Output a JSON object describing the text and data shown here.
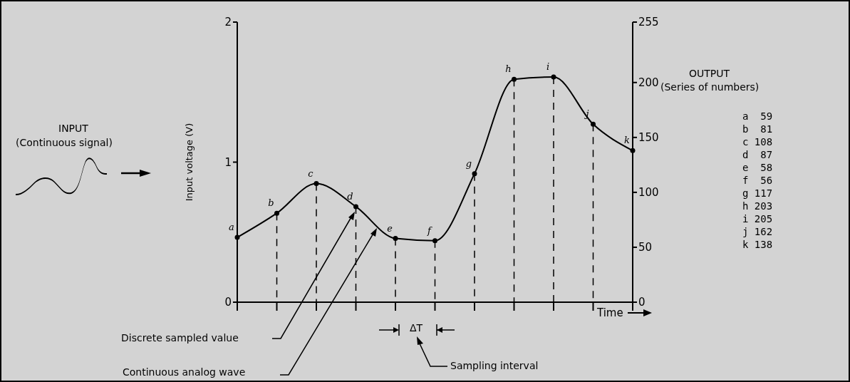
{
  "chart_data": {
    "type": "line",
    "xlabel": "Time",
    "ylabel": "Input voltage (V)",
    "categories": [
      "a",
      "b",
      "c",
      "d",
      "e",
      "f",
      "g",
      "h",
      "i",
      "j",
      "k"
    ],
    "series": [
      {
        "color": "#000000",
        "axis": "y2",
        "marker": "none",
        "values": [
          59,
          81,
          108,
          87,
          58,
          56,
          117,
          203,
          205,
          162,
          138
        ]
      },
      {
        "type": "lollipop",
        "color": "#000000",
        "axis": "y2",
        "values": [
          59,
          81,
          108,
          87,
          58,
          56,
          117,
          203,
          205,
          162,
          138
        ]
      }
    ],
    "ylim": [
      0,
      2
    ],
    "yticks": [
      0,
      1,
      2
    ],
    "y2lim": [
      0,
      255
    ],
    "y2ticks": [
      0,
      50,
      100,
      150,
      200,
      255
    ],
    "tick_labels": "y",
    "marker": "circle",
    "line_style": "solid",
    "annotations": [
      "INPUT",
      "(Continuous signal)",
      "OUTPUT",
      "(Series of numbers)",
      "Discrete sampled value",
      "Continuous analog wave",
      "ΔT",
      "Sampling interval",
      "a  59",
      "b  81",
      "c 108",
      "d  87",
      "e  58",
      "f  56",
      "g 117",
      "h 203",
      "i 205",
      "j 162",
      "k 138"
    ]
  }
}
